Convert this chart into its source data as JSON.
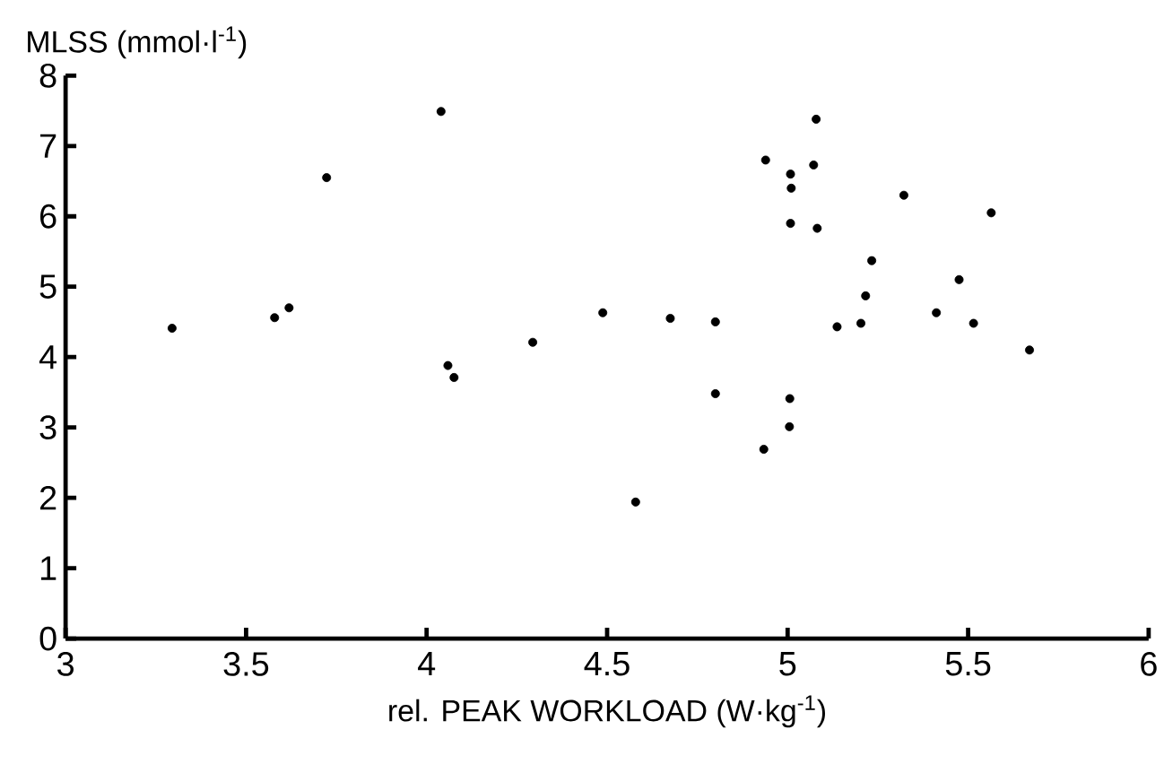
{
  "chart_data": {
    "type": "scatter",
    "xlabel": "rel. PEAK WORKLOAD (W·kg$^{-1}$)",
    "ylabel": "MLSS (mmol·l$^{-1}$)",
    "xlim": [
      3,
      6
    ],
    "ylim": [
      0,
      8
    ],
    "xticks": [
      3,
      3.5,
      4,
      4.5,
      5,
      5.5,
      6
    ],
    "yticks": [
      0,
      1,
      2,
      3,
      4,
      5,
      6,
      7,
      8
    ],
    "marker": "circle",
    "color": "#000000",
    "x": [
      3.295,
      3.579,
      3.619,
      3.723,
      4.04,
      4.059,
      4.076,
      4.294,
      4.488,
      4.675,
      4.8,
      4.8,
      4.579,
      4.934,
      5.005,
      5.006,
      4.939,
      5.008,
      5.01,
      5.008,
      5.072,
      5.079,
      5.082,
      5.137,
      5.203,
      5.216,
      5.233,
      5.322,
      5.412,
      5.475,
      5.515,
      5.564,
      5.67
    ],
    "values": [
      4.41,
      4.56,
      4.7,
      6.55,
      7.49,
      3.88,
      3.71,
      4.21,
      4.63,
      4.55,
      4.5,
      3.48,
      1.94,
      2.69,
      3.01,
      3.41,
      6.8,
      6.6,
      6.4,
      5.9,
      6.73,
      7.38,
      5.83,
      4.43,
      4.48,
      4.87,
      5.37,
      6.3,
      4.63,
      5.1,
      4.48,
      6.05,
      4.1
    ]
  }
}
